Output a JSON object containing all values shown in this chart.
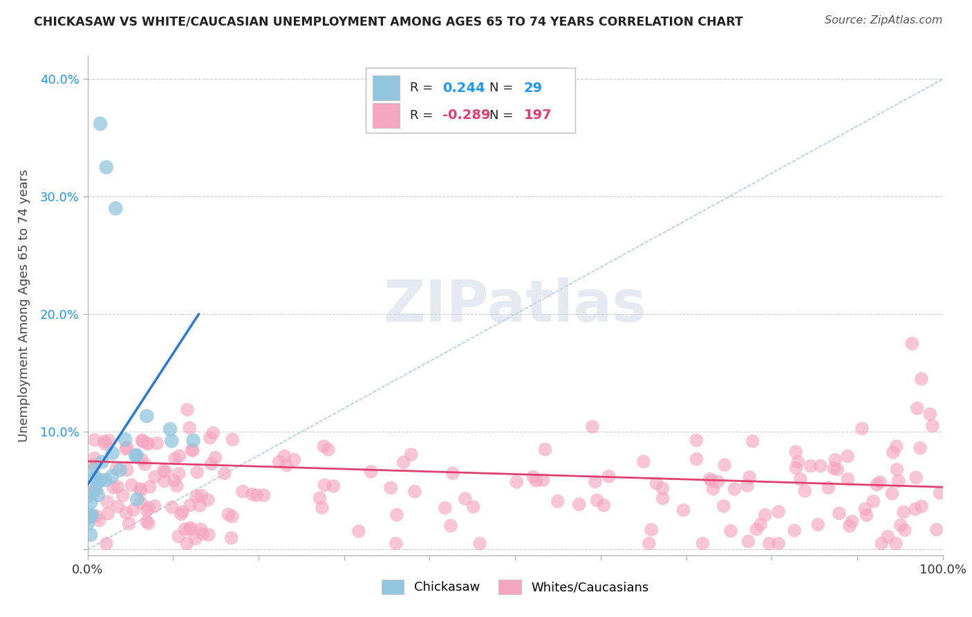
{
  "title": "CHICKASAW VS WHITE/CAUCASIAN UNEMPLOYMENT AMONG AGES 65 TO 74 YEARS CORRELATION CHART",
  "source": "Source: ZipAtlas.com",
  "ylabel": "Unemployment Among Ages 65 to 74 years",
  "xlim": [
    0,
    1.0
  ],
  "ylim": [
    -0.005,
    0.42
  ],
  "xticks": [
    0.0,
    0.1,
    0.2,
    0.3,
    0.4,
    0.5,
    0.6,
    0.7,
    0.8,
    0.9,
    1.0
  ],
  "xticklabels": [
    "0.0%",
    "",
    "",
    "",
    "",
    "",
    "",
    "",
    "",
    "",
    "100.0%"
  ],
  "yticks": [
    0.0,
    0.1,
    0.2,
    0.3,
    0.4
  ],
  "yticklabels": [
    "",
    "10.0%",
    "20.0%",
    "30.0%",
    "40.0%"
  ],
  "chickasaw_color": "#92c5de",
  "white_color": "#f4a6c0",
  "chickasaw_R": 0.244,
  "chickasaw_N": 29,
  "white_R": -0.289,
  "white_N": 197,
  "background_color": "#ffffff",
  "grid_color": "#cccccc",
  "diag_line_color": "#a0c4e8",
  "chickasaw_line_color": "#2979d4",
  "white_line_color": "#e04070",
  "title_color": "#222222",
  "legend_R_color_blue": "#2196F3",
  "legend_R_color_pink": "#e04070",
  "ytick_color": "#2196F3",
  "xtick_color": "#333333"
}
